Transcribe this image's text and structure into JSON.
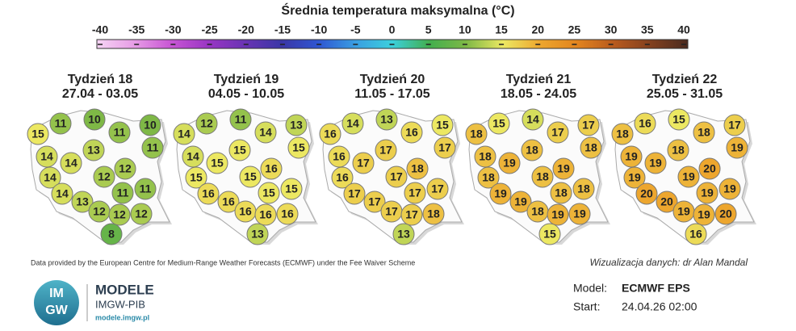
{
  "title": "Średnia temperatura maksymalna (°C)",
  "colorbar": {
    "ticks": [
      -40,
      -35,
      -30,
      -25,
      -20,
      -15,
      -10,
      -5,
      0,
      5,
      10,
      15,
      20,
      25,
      30,
      35,
      40
    ],
    "colors": [
      "#f6d4f4",
      "#e79de6",
      "#c856d4",
      "#9a36c4",
      "#6a34b4",
      "#3a36a6",
      "#2f56d2",
      "#3a9ee2",
      "#3cd0dc",
      "#42ae4e",
      "#7eb846",
      "#ece862",
      "#eda62e",
      "#e2841e",
      "#b85a1e",
      "#82401e",
      "#4a2a1e"
    ]
  },
  "maps": [
    {
      "title": "Tydzień 18",
      "dates": "27.04 - 03.05",
      "values": [
        15,
        11,
        10,
        11,
        10,
        11,
        14,
        14,
        13,
        14,
        12,
        12,
        14,
        13,
        11,
        11,
        12,
        12,
        12,
        8
      ]
    },
    {
      "title": "Tydzień 19",
      "dates": "04.05 - 10.05",
      "values": [
        14,
        12,
        11,
        14,
        13,
        15,
        14,
        15,
        15,
        15,
        15,
        16,
        16,
        16,
        15,
        15,
        16,
        16,
        16,
        13
      ]
    },
    {
      "title": "Tydzień 20",
      "dates": "11.05 - 17.05",
      "values": [
        16,
        14,
        13,
        16,
        15,
        17,
        16,
        17,
        17,
        16,
        17,
        18,
        17,
        17,
        17,
        17,
        17,
        17,
        18,
        13
      ]
    },
    {
      "title": "Tydzień 21",
      "dates": "18.05 - 24.05",
      "values": [
        18,
        15,
        14,
        17,
        17,
        18,
        18,
        19,
        18,
        18,
        18,
        19,
        19,
        19,
        18,
        18,
        18,
        19,
        19,
        15
      ]
    },
    {
      "title": "Tydzień 22",
      "dates": "25.05 - 31.05",
      "values": [
        18,
        16,
        15,
        18,
        17,
        19,
        19,
        19,
        18,
        19,
        19,
        20,
        20,
        20,
        19,
        19,
        19,
        19,
        20,
        16
      ]
    }
  ],
  "footer": {
    "source": "Data provided by the European Centre for Medium-Range Weather Forecasts (ECMWF) under the Fee Waiver Scheme",
    "credit": "Wizualizacja danych: dr Alan Mandal",
    "logo_top": "IM",
    "logo_bottom": "GW",
    "brand": "MODELE",
    "org": "IMGW-PIB",
    "url": "modele.imgw.pl",
    "model_label": "Model:",
    "model": "ECMWF EPS",
    "start_label": "Start:",
    "start": "24.04.26 02:00"
  }
}
